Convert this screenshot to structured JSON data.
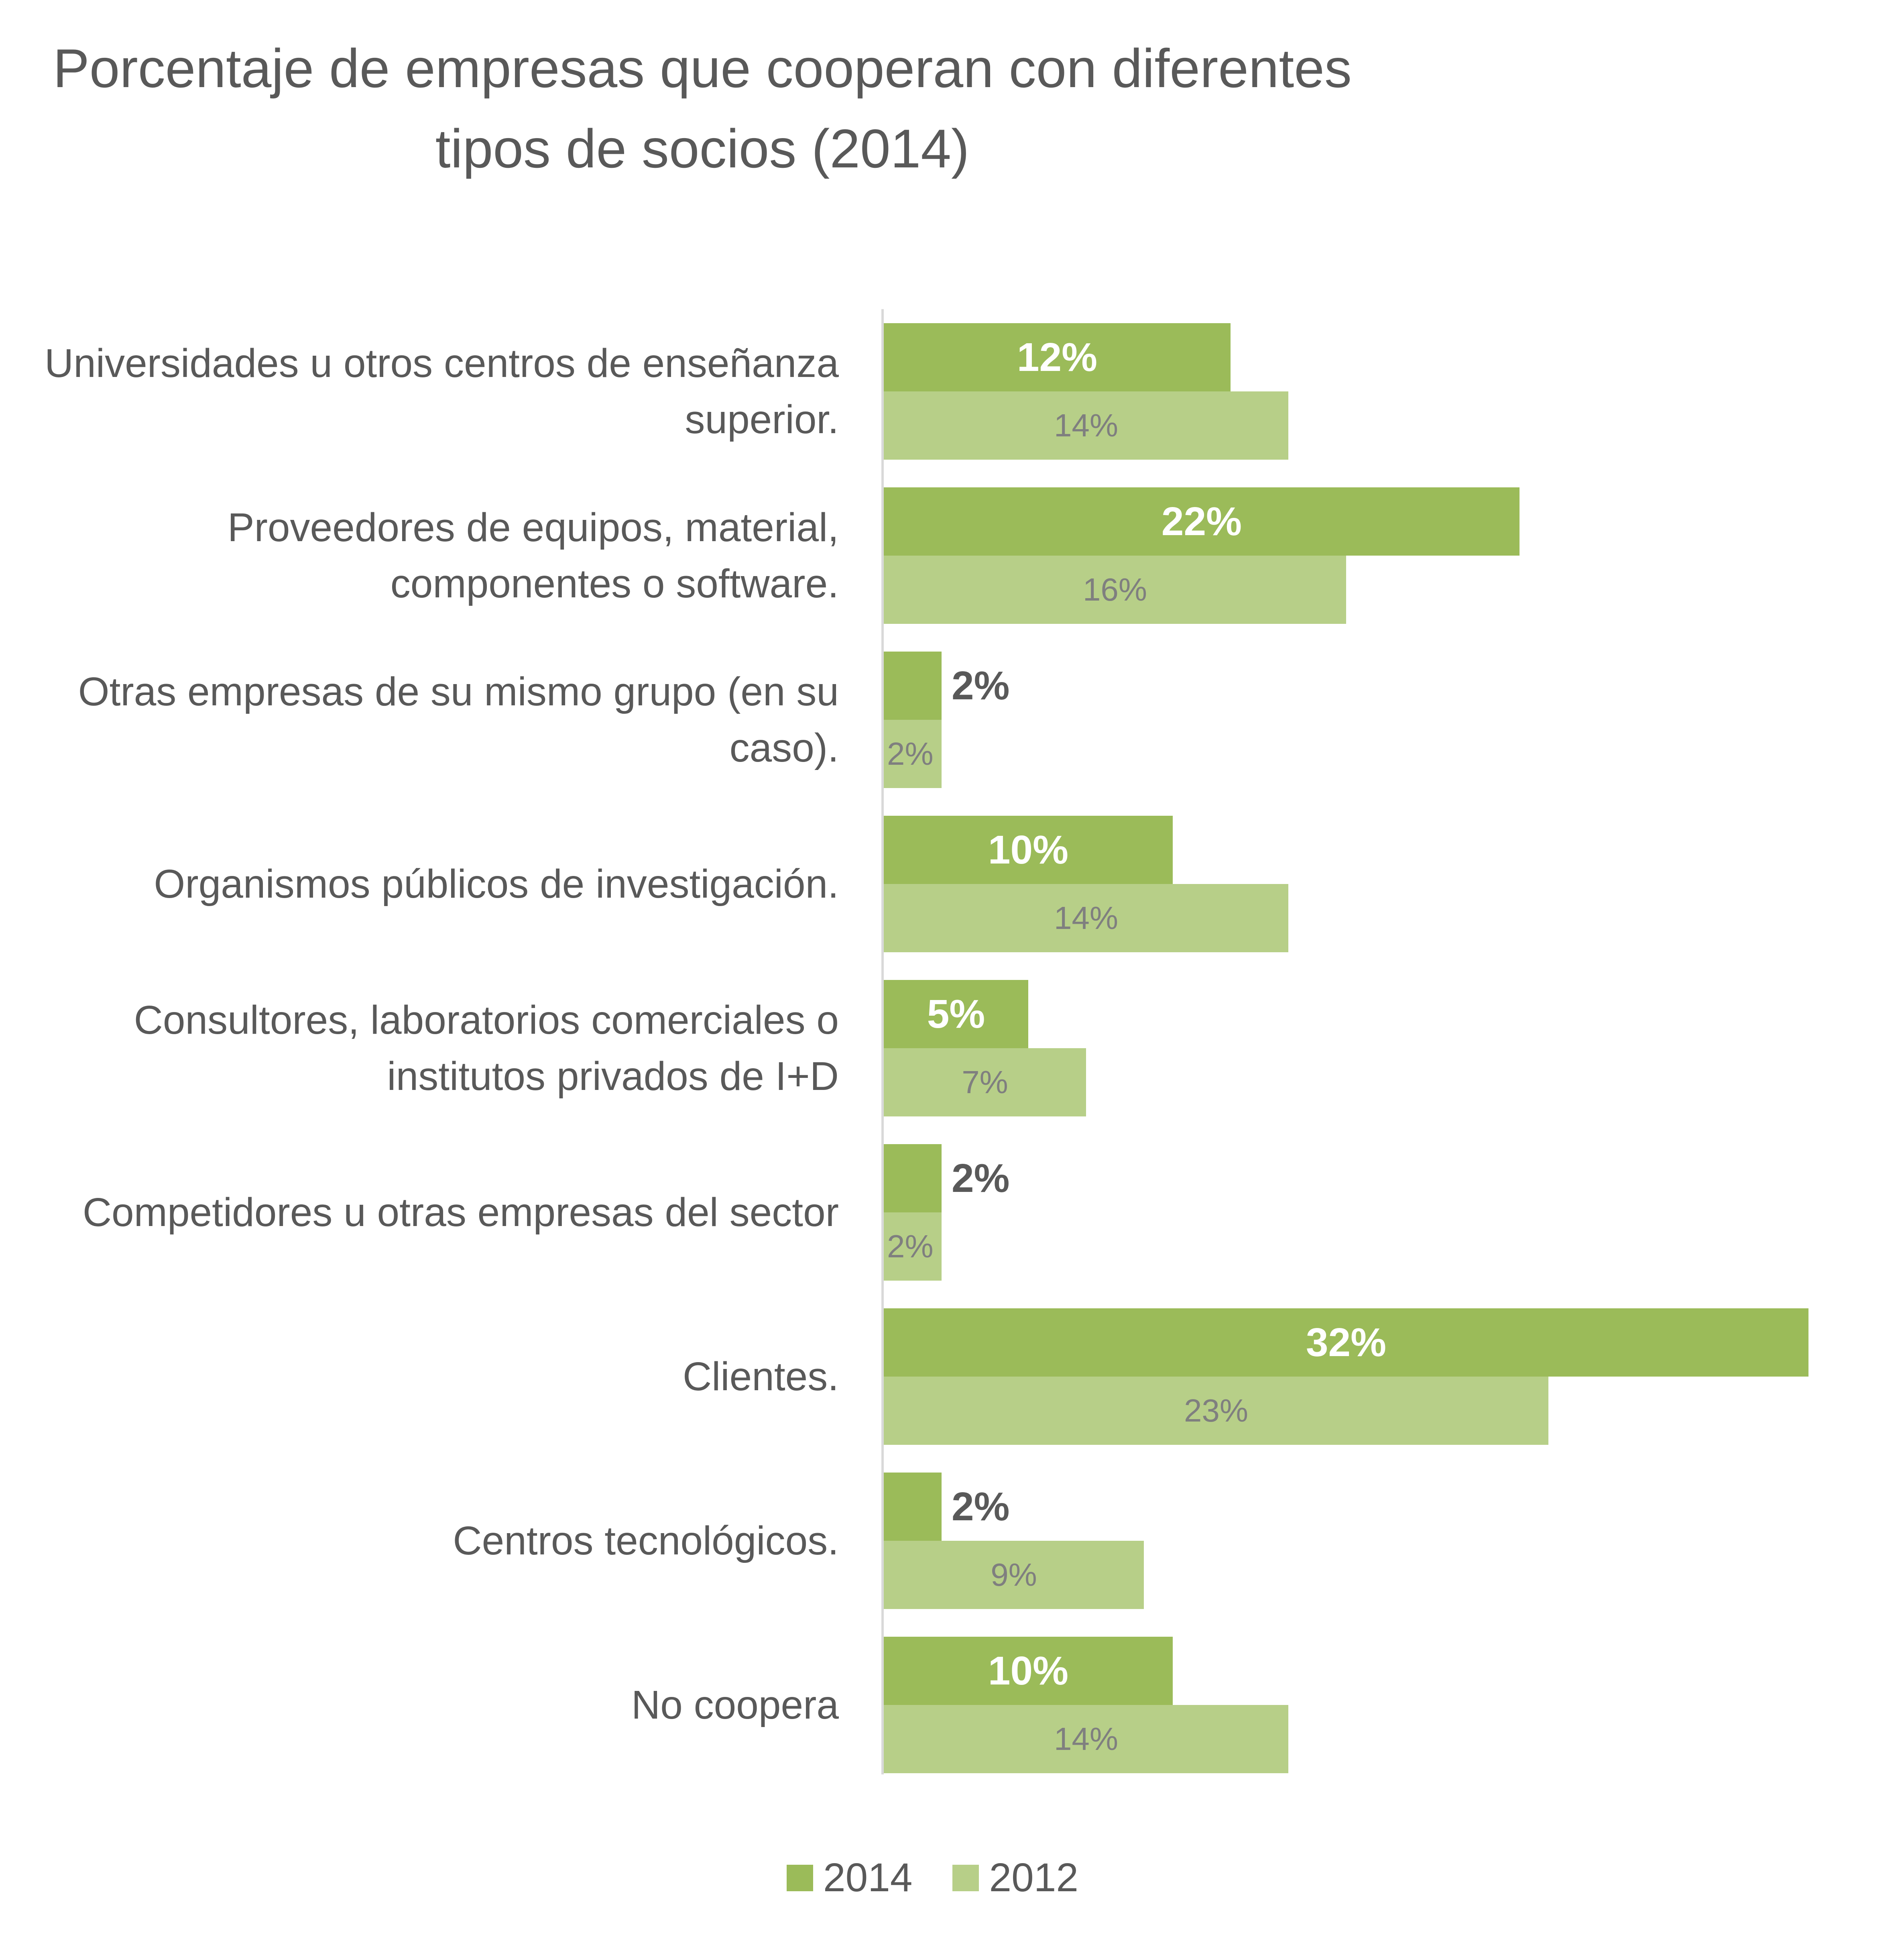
{
  "chart_data": {
    "type": "bar",
    "orientation": "horizontal",
    "title": "Porcentaje de empresas que cooperan con diferentes tipos de socios (2014)",
    "title_lines": [
      "Porcentaje de empresas que cooperan con diferentes",
      "tipos de socios (2014)"
    ],
    "xlabel": "",
    "ylabel": "",
    "xlim": [
      0,
      33
    ],
    "grid": false,
    "legend_position": "bottom",
    "categories": [
      [
        "Universidades u otros centros de enseñanza",
        "superior."
      ],
      [
        "Proveedores de equipos, material,",
        "componentes o software."
      ],
      [
        "Otras empresas de su mismo grupo (en su",
        "caso)."
      ],
      [
        "Organismos públicos de investigación."
      ],
      [
        "Consultores, laboratorios comerciales o",
        "institutos privados de I+D"
      ],
      [
        "Competidores u otras empresas del sector"
      ],
      [
        "Clientes."
      ],
      [
        "Centros tecnológicos."
      ],
      [
        "No coopera"
      ]
    ],
    "series": [
      {
        "name": "2014",
        "color": "#9bbb59",
        "values": [
          12,
          22,
          2,
          10,
          5,
          2,
          32,
          2,
          10
        ],
        "labels": [
          "12%",
          "22%",
          "2%",
          "10%",
          "5%",
          "2%",
          "32%",
          "2%",
          "10%"
        ]
      },
      {
        "name": "2012",
        "color": "#b7cf88",
        "values": [
          14,
          16,
          2,
          14,
          7,
          2,
          23,
          9,
          14
        ],
        "labels": [
          "14%",
          "16%",
          "2%",
          "14%",
          "7%",
          "2%",
          "23%",
          "9%",
          "14%"
        ]
      }
    ]
  }
}
